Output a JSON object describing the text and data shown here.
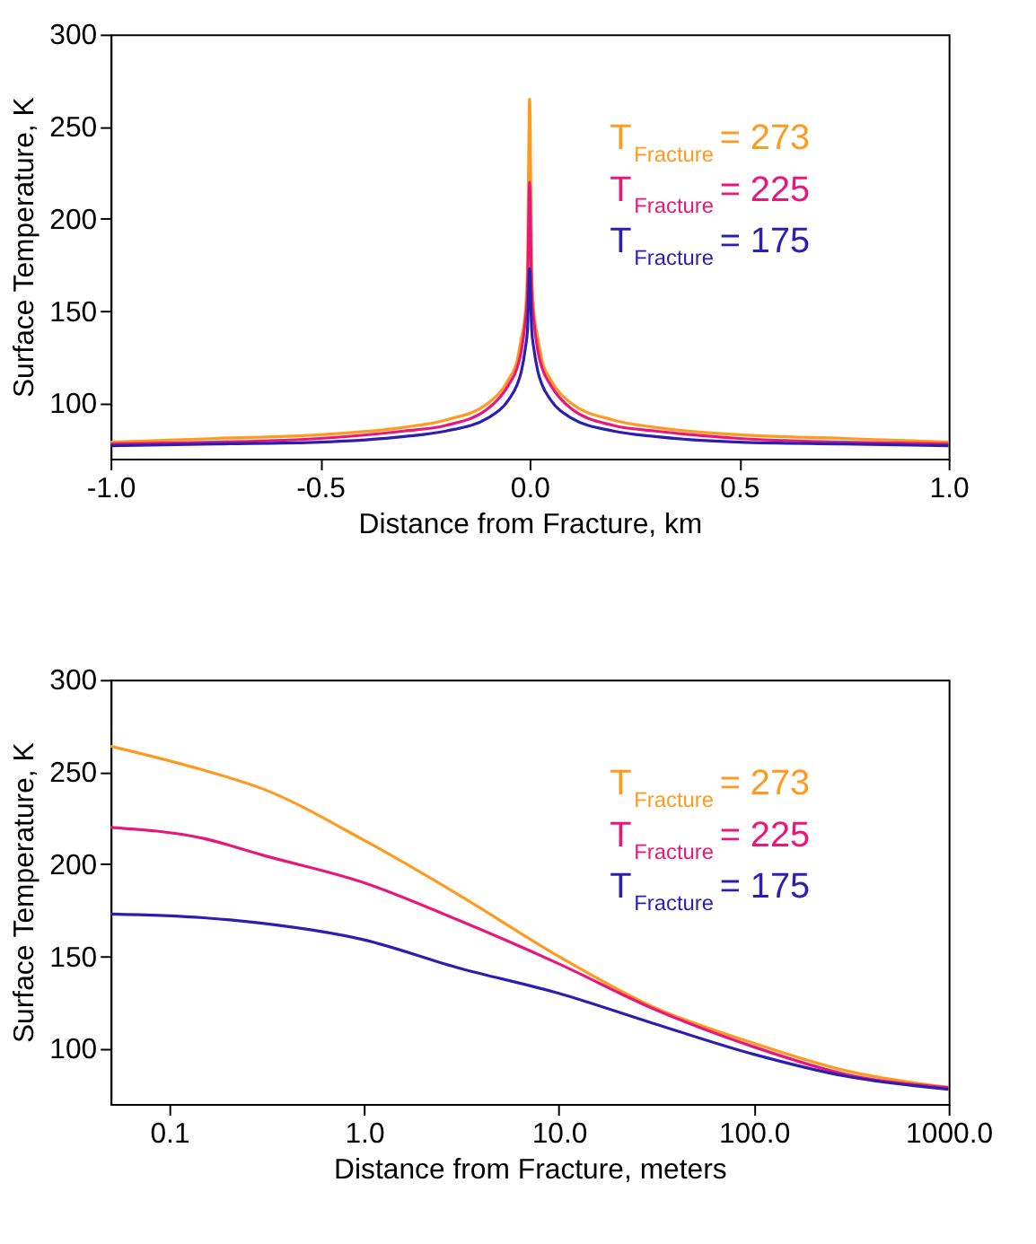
{
  "chart_data": [
    {
      "type": "line",
      "xlabel": "Distance from Fracture, km",
      "ylabel": "Surface Temperature, K",
      "xlim": [
        -1.0,
        1.0
      ],
      "ylim": [
        70,
        300
      ],
      "xticks": [
        {
          "value": -1.0,
          "label": "-1.0"
        },
        {
          "value": -0.5,
          "label": "-0.5"
        },
        {
          "value": 0,
          "label": "0.0"
        },
        {
          "value": 0.5,
          "label": "0.5"
        },
        {
          "value": 1.0,
          "label": "1.0"
        }
      ],
      "yticks": [
        100,
        150,
        200,
        250,
        300
      ],
      "grid": false,
      "legend": "top right",
      "series": [
        {
          "name": "T$_{Fracture}$ = 273",
          "color": "#ff9a1f",
          "x": [
            -1.0,
            -0.75,
            -0.5,
            -0.3,
            -0.2,
            -0.1,
            -0.05,
            -0.03,
            -0.02,
            -0.01,
            -0.005,
            0,
            0.005,
            0.01,
            0.02,
            0.03,
            0.05,
            0.1,
            0.2,
            0.3,
            0.5,
            0.75,
            1.0
          ],
          "values": [
            79,
            81,
            83,
            87,
            91,
            100,
            113,
            123,
            135,
            150,
            175,
            265,
            175,
            150,
            135,
            123,
            113,
            100,
            91,
            87,
            83,
            81,
            79
          ]
        },
        {
          "name": "T$_{Fracture}$ = 225",
          "color": "#e8177a",
          "x": [
            -1.0,
            -0.75,
            -0.5,
            -0.3,
            -0.2,
            -0.1,
            -0.05,
            -0.03,
            -0.02,
            -0.01,
            -0.005,
            0,
            0.005,
            0.01,
            0.02,
            0.03,
            0.05,
            0.1,
            0.2,
            0.3,
            0.5,
            0.75,
            1.0
          ],
          "values": [
            78,
            79,
            81,
            85,
            88,
            97,
            110,
            119,
            128,
            145,
            160,
            220,
            160,
            145,
            128,
            119,
            110,
            97,
            88,
            85,
            81,
            79,
            78
          ]
        },
        {
          "name": "T$_{Fracture}$ = 175",
          "color": "#2a1fb0",
          "x": [
            -1.0,
            -0.75,
            -0.5,
            -0.3,
            -0.2,
            -0.1,
            -0.05,
            -0.03,
            -0.02,
            -0.01,
            -0.005,
            0,
            0.005,
            0.01,
            0.02,
            0.03,
            0.05,
            0.1,
            0.2,
            0.3,
            0.5,
            0.75,
            1.0
          ],
          "values": [
            77,
            78,
            79,
            82,
            85,
            92,
            102,
            110,
            117,
            130,
            140,
            173,
            140,
            130,
            117,
            110,
            102,
            92,
            85,
            82,
            79,
            78,
            77
          ]
        }
      ]
    },
    {
      "type": "line",
      "xlabel": "Distance from Fracture, meters",
      "ylabel": "Surface Temperature, K",
      "log": "x",
      "xlim": [
        0.05,
        1000
      ],
      "ylim": [
        70,
        300
      ],
      "xticks": [
        0.1,
        {
          "value": 1,
          "label": "1.0"
        },
        {
          "value": 10,
          "label": "10.0"
        },
        {
          "value": 100,
          "label": "100.0"
        },
        {
          "value": 1000,
          "label": "1000.0"
        }
      ],
      "yticks": [
        100,
        150,
        200,
        250,
        300
      ],
      "grid": false,
      "legend": "top right",
      "series": [
        {
          "name": "T$_{Fracture}$ = 273",
          "color": "#ff9a1f",
          "x": [
            0.05,
            0.15,
            0.3,
            1,
            3,
            10,
            30,
            100,
            300,
            1000
          ],
          "values": [
            264,
            251,
            241,
            213,
            184,
            150,
            123,
            103,
            88,
            79
          ]
        },
        {
          "name": "T$_{Fracture}$ = 225",
          "color": "#e8177a",
          "x": [
            0.05,
            0.15,
            0.3,
            1,
            3,
            10,
            30,
            100,
            300,
            1000
          ],
          "values": [
            220,
            214,
            205,
            190,
            170,
            146,
            122,
            101,
            86,
            79
          ]
        },
        {
          "name": "T$_{Fracture}$ = 175",
          "color": "#2a1fb0",
          "x": [
            0.05,
            0.15,
            0.3,
            1,
            3,
            10,
            30,
            100,
            300,
            1000
          ],
          "values": [
            173,
            171,
            168,
            159,
            144,
            130,
            114,
            97,
            85,
            78
          ]
        }
      ]
    }
  ]
}
